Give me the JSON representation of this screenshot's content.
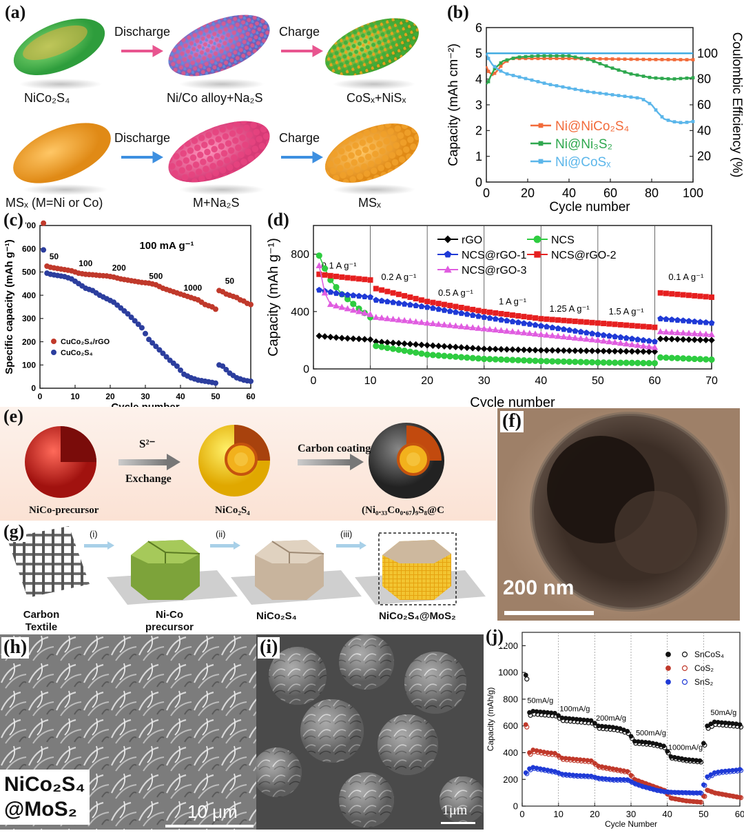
{
  "panels": {
    "a": {
      "label": "(a)",
      "step_discharge": "Discharge",
      "step_charge": "Charge",
      "top_row": [
        "NiCo₂S₄",
        "Ni/Co alloy+Na₂S",
        "CoSₓ+NiSₓ"
      ],
      "bottom_row": [
        "MSₓ (M=Ni or Co)",
        "M+Na₂S",
        "MSₓ"
      ]
    },
    "e": {
      "label": "(e)",
      "arrow1_top": "S²⁻",
      "arrow1_bottom": "Exchange",
      "arrow2_top": "Carbon coating",
      "captions": [
        "NiCo-precursor",
        "NiCo₂S₄",
        "(Ni₀.₃₃Co₀.₆₇)₉S₈@C"
      ]
    },
    "f": {
      "label": "(f)",
      "scale": "200 nm"
    },
    "g": {
      "label": "(g)",
      "steps": [
        "(i)",
        "(ii)",
        "(iii)"
      ],
      "captions": [
        "Carbon Textile",
        "Ni-Co precursor",
        "NiCo₂S₄",
        "NiCo₂S₄@MoS₂"
      ]
    },
    "h": {
      "label": "(h)",
      "overlay_line1": "NiCo₂S₄",
      "overlay_line2": "@MoS₂",
      "scale": "10 μm"
    },
    "i": {
      "label": "(i)",
      "scale": "1μm"
    }
  },
  "chart_data": [
    {
      "id": "b",
      "label": "(b)",
      "type": "line",
      "xlabel": "Cycle number",
      "ylabel": "Capacity (mAh cm⁻²)",
      "y2label": "Coulombic Efficiency (%)",
      "xlim": [
        0,
        100
      ],
      "ylim": [
        0,
        6
      ],
      "y2lim": [
        0,
        120
      ],
      "xticks": [
        0,
        20,
        40,
        60,
        80,
        100
      ],
      "yticks": [
        0,
        1,
        2,
        3,
        4,
        5,
        6
      ],
      "y2ticks": [
        20,
        40,
        60,
        80,
        100
      ],
      "legend": "center-right",
      "series": [
        {
          "name": "Ni@NiCo₂S₄",
          "color": "#f26b3a",
          "x": [
            0,
            1,
            3,
            5,
            8,
            12,
            20,
            40,
            60,
            80,
            100
          ],
          "y": [
            4.5,
            4.3,
            4.15,
            4.3,
            4.6,
            4.8,
            4.8,
            4.8,
            4.78,
            4.76,
            4.75
          ]
        },
        {
          "name": "Ni@Ni₃S₂",
          "color": "#2fa84f",
          "x": [
            0,
            1,
            2,
            4,
            8,
            15,
            25,
            40,
            50,
            60,
            70,
            80,
            90,
            100
          ],
          "y": [
            3.8,
            3.9,
            4.1,
            4.4,
            4.7,
            4.85,
            4.9,
            4.9,
            4.75,
            4.45,
            4.2,
            4.05,
            4.0,
            4.05
          ]
        },
        {
          "name": "Ni@CoSₓ",
          "color": "#5bb6ea",
          "x": [
            0,
            1,
            3,
            6,
            10,
            20,
            30,
            40,
            50,
            60,
            70,
            75,
            80,
            83,
            86,
            90,
            95,
            100
          ],
          "y": [
            5.0,
            4.8,
            4.55,
            4.35,
            4.2,
            4.0,
            3.8,
            3.65,
            3.5,
            3.4,
            3.3,
            3.25,
            3.0,
            2.7,
            2.45,
            2.35,
            2.3,
            2.35
          ]
        },
        {
          "name": "CE",
          "color": "#3aa8e0",
          "axis": "y2",
          "x": [
            0,
            10,
            20,
            40,
            60,
            80,
            100
          ],
          "y": [
            100,
            100,
            100,
            100,
            100,
            100,
            100
          ]
        }
      ]
    },
    {
      "id": "c",
      "label": "(c)",
      "type": "scatter",
      "xlabel": "Cycle number",
      "ylabel": "Specific capacity (mAh g⁻¹)",
      "xlim": [
        0,
        60
      ],
      "ylim": [
        0,
        700
      ],
      "xticks": [
        0,
        10,
        20,
        30,
        40,
        50,
        60
      ],
      "yticks": [
        0,
        100,
        200,
        300,
        400,
        500,
        600,
        700
      ],
      "annotation": "100 mA g⁻¹",
      "rate_labels": [
        {
          "t": "50",
          "x": 4,
          "y": 555
        },
        {
          "t": "100",
          "x": 13,
          "y": 525
        },
        {
          "t": "200",
          "x": 22.5,
          "y": 505
        },
        {
          "t": "500",
          "x": 33,
          "y": 470
        },
        {
          "t": "1000",
          "x": 43.5,
          "y": 420
        },
        {
          "t": "50",
          "x": 54,
          "y": 450
        }
      ],
      "legend": "bottom-left",
      "series": [
        {
          "name": "CuCo₂S₄/rGO",
          "color": "#c0392b",
          "x": [
            1,
            2,
            3,
            5,
            7,
            9,
            11,
            13,
            15,
            17,
            19,
            21,
            23,
            25,
            27,
            29,
            31,
            33,
            35,
            37,
            39,
            41,
            43,
            45,
            47,
            49,
            50,
            51,
            52,
            53,
            54,
            55,
            56,
            57,
            58,
            59,
            60
          ],
          "y": [
            710,
            525,
            520,
            515,
            510,
            505,
            495,
            490,
            488,
            485,
            483,
            478,
            470,
            465,
            460,
            455,
            452,
            445,
            430,
            420,
            410,
            400,
            390,
            380,
            360,
            350,
            340,
            420,
            415,
            405,
            400,
            395,
            390,
            380,
            375,
            365,
            360
          ]
        },
        {
          "name": "CuCo₂S₄",
          "color": "#2c3e9e",
          "x": [
            1,
            2,
            3,
            5,
            7,
            9,
            11,
            13,
            15,
            17,
            19,
            21,
            23,
            25,
            27,
            29,
            31,
            33,
            35,
            37,
            39,
            41,
            43,
            45,
            47,
            49,
            50,
            51,
            52,
            53,
            54,
            55,
            56,
            57,
            58,
            59,
            60
          ],
          "y": [
            595,
            495,
            490,
            485,
            480,
            470,
            450,
            430,
            420,
            400,
            385,
            370,
            345,
            320,
            290,
            260,
            210,
            180,
            150,
            120,
            95,
            60,
            45,
            35,
            30,
            25,
            22,
            100,
            95,
            80,
            65,
            55,
            45,
            40,
            35,
            32,
            30
          ]
        }
      ]
    },
    {
      "id": "d",
      "label": "(d)",
      "type": "line",
      "xlabel": "Cycle number",
      "ylabel": "Capacity (mAh g⁻¹)",
      "xlim": [
        0,
        70
      ],
      "ylim": [
        0,
        1000
      ],
      "xticks": [
        0,
        10,
        20,
        30,
        40,
        50,
        60,
        70
      ],
      "yticks": [
        0,
        400,
        800
      ],
      "legend": "top",
      "rate_labels": [
        {
          "t": "0.1 A g⁻¹",
          "x": 4.5,
          "y": 700
        },
        {
          "t": "0.2 A g⁻¹",
          "x": 15,
          "y": 620
        },
        {
          "t": "0.5 A g⁻¹",
          "x": 25,
          "y": 510
        },
        {
          "t": "1 A g⁻¹",
          "x": 35,
          "y": 450
        },
        {
          "t": "1.25 A g⁻¹",
          "x": 45,
          "y": 400
        },
        {
          "t": "1.5 A g⁻¹",
          "x": 55,
          "y": 380
        },
        {
          "t": "0.1 A g⁻¹",
          "x": 65.5,
          "y": 620
        }
      ],
      "series": [
        {
          "name": "rGO",
          "color": "#000000",
          "marker": "diamond",
          "x": [
            1,
            5,
            10,
            11,
            20,
            30,
            40,
            50,
            60,
            61,
            70
          ],
          "y": [
            230,
            215,
            205,
            190,
            165,
            140,
            130,
            125,
            120,
            210,
            200
          ]
        },
        {
          "name": "NCS",
          "color": "#2ecc40",
          "marker": "circle",
          "x": [
            1,
            2,
            3,
            5,
            8,
            10,
            11,
            20,
            30,
            40,
            50,
            60,
            61,
            70
          ],
          "y": [
            790,
            700,
            620,
            520,
            420,
            360,
            160,
            100,
            70,
            55,
            45,
            40,
            80,
            65
          ]
        },
        {
          "name": "NCS@rGO-1",
          "color": "#1f3ad6",
          "marker": "pentagon",
          "x": [
            1,
            5,
            10,
            11,
            20,
            30,
            40,
            50,
            60,
            61,
            70
          ],
          "y": [
            550,
            520,
            500,
            480,
            430,
            360,
            300,
            240,
            190,
            350,
            320
          ]
        },
        {
          "name": "NCS@rGO-2",
          "color": "#e62020",
          "marker": "square",
          "x": [
            1,
            5,
            10,
            11,
            20,
            30,
            40,
            50,
            60,
            61,
            70
          ],
          "y": [
            660,
            640,
            620,
            560,
            470,
            400,
            350,
            320,
            290,
            530,
            500
          ]
        },
        {
          "name": "NCS@rGO-3",
          "color": "#e05ce0",
          "marker": "triangle",
          "x": [
            1,
            2,
            3,
            5,
            10,
            11,
            20,
            30,
            40,
            50,
            60,
            61,
            70
          ],
          "y": [
            720,
            530,
            450,
            430,
            380,
            360,
            320,
            280,
            240,
            200,
            150,
            260,
            240
          ]
        }
      ]
    },
    {
      "id": "j",
      "label": "(j)",
      "type": "scatter",
      "xlabel": "Cycle Number",
      "ylabel": "Capacity (mAh/g)",
      "xlim": [
        0,
        60
      ],
      "ylim": [
        0,
        1300
      ],
      "xticks": [
        0,
        10,
        20,
        30,
        40,
        50,
        60
      ],
      "yticks": [
        0,
        200,
        400,
        600,
        800,
        1000,
        1200
      ],
      "legend": "top-right",
      "rate_labels": [
        {
          "t": "50mA/g",
          "x": 5,
          "y": 770
        },
        {
          "t": "100mA/g",
          "x": 14.5,
          "y": 710
        },
        {
          "t": "200mA/g",
          "x": 24.5,
          "y": 640
        },
        {
          "t": "500mA/g",
          "x": 35.5,
          "y": 530
        },
        {
          "t": "1000mA/g",
          "x": 45,
          "y": 420
        },
        {
          "t": "50mA/g",
          "x": 55.5,
          "y": 680
        }
      ],
      "series": [
        {
          "name": "SnCoS₄",
          "color": "#111111",
          "x": [
            1,
            2,
            3,
            5,
            7,
            9,
            11,
            13,
            15,
            17,
            19,
            21,
            23,
            25,
            27,
            29,
            31,
            33,
            35,
            37,
            39,
            41,
            43,
            45,
            47,
            49,
            51,
            53,
            55,
            57,
            59,
            60
          ],
          "y": [
            980,
            700,
            710,
            705,
            700,
            695,
            660,
            655,
            650,
            645,
            640,
            600,
            595,
            590,
            580,
            560,
            485,
            480,
            475,
            465,
            450,
            370,
            360,
            350,
            345,
            340,
            600,
            630,
            625,
            620,
            615,
            610
          ]
        },
        {
          "name": "CoS₂",
          "color": "#c0392b",
          "x": [
            1,
            2,
            3,
            5,
            7,
            9,
            11,
            13,
            15,
            17,
            19,
            21,
            23,
            25,
            27,
            29,
            31,
            33,
            35,
            37,
            39,
            41,
            43,
            45,
            47,
            49,
            51,
            53,
            55,
            57,
            59,
            60
          ],
          "y": [
            610,
            400,
            420,
            410,
            400,
            395,
            360,
            355,
            350,
            345,
            340,
            300,
            290,
            280,
            270,
            260,
            200,
            180,
            160,
            140,
            120,
            60,
            50,
            40,
            35,
            30,
            120,
            100,
            90,
            80,
            70,
            65
          ]
        },
        {
          "name": "SnS₂",
          "color": "#1f3ad6",
          "x": [
            1,
            2,
            3,
            5,
            7,
            9,
            11,
            13,
            15,
            17,
            19,
            21,
            23,
            25,
            27,
            29,
            31,
            33,
            35,
            37,
            39,
            41,
            43,
            45,
            47,
            49,
            51,
            53,
            55,
            57,
            59,
            60
          ],
          "y": [
            250,
            280,
            290,
            280,
            270,
            260,
            240,
            235,
            230,
            228,
            225,
            210,
            205,
            200,
            200,
            198,
            170,
            150,
            135,
            120,
            110,
            105,
            103,
            102,
            100,
            100,
            220,
            250,
            260,
            265,
            270,
            275
          ]
        }
      ]
    }
  ]
}
